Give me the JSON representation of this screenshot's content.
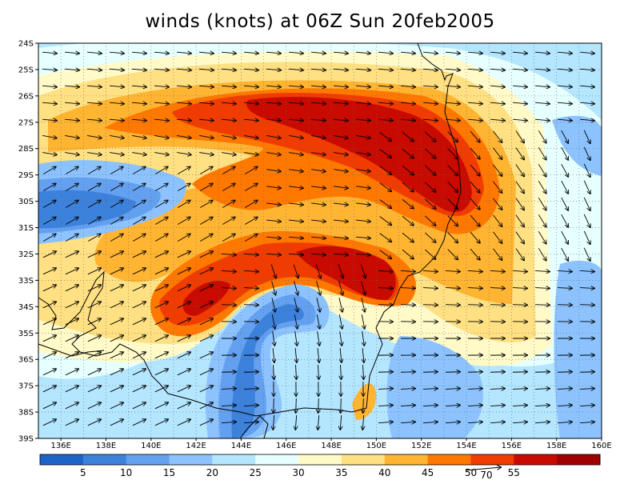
{
  "title": "winds (knots) at 06Z Sun 20feb2005",
  "map": {
    "lat_labels": [
      "24S",
      "25S",
      "26S",
      "27S",
      "28S",
      "29S",
      "30S",
      "31S",
      "32S",
      "33S",
      "34S",
      "35S",
      "36S",
      "37S",
      "38S",
      "39S"
    ],
    "lon_labels": [
      "136E",
      "138E",
      "140E",
      "142E",
      "144E",
      "146E",
      "148E",
      "150E",
      "152E",
      "154E",
      "156E",
      "158E",
      "160E"
    ]
  },
  "colorbar": {
    "colors": [
      "#1e64c8",
      "#3c82dc",
      "#64a0f0",
      "#8cc3ff",
      "#b4e6ff",
      "#e6ffff",
      "#fffac8",
      "#ffe082",
      "#ffb432",
      "#ff7800",
      "#f03c00",
      "#c80a00",
      "#a00000"
    ],
    "labels": [
      "5",
      "10",
      "15",
      "20",
      "25",
      "30",
      "35",
      "40",
      "45",
      "50",
      "55"
    ]
  },
  "legend_overlay": {
    "reference_speed": "70"
  }
}
